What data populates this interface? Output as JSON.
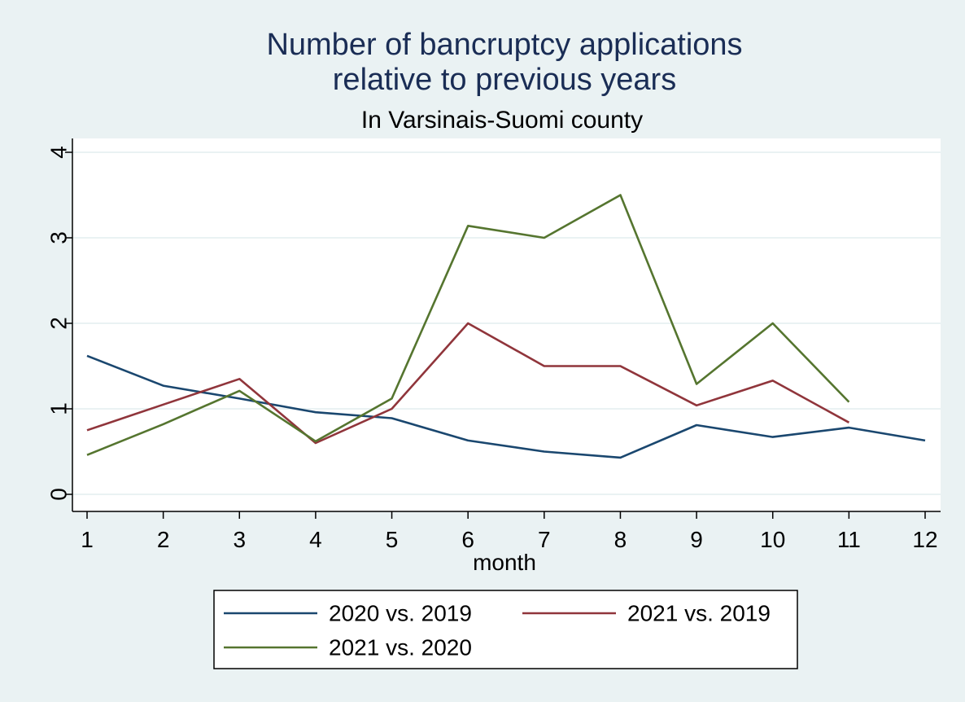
{
  "chart_data": {
    "type": "line",
    "title_lines": [
      "Number of bancruptcy applications",
      "relative to previous years"
    ],
    "subtitle": "In Varsinais-Suomi county",
    "xlabel": "month",
    "ylabel": "",
    "x": [
      1,
      2,
      3,
      4,
      5,
      6,
      7,
      8,
      9,
      10,
      11,
      12
    ],
    "x_ticks": [
      "1",
      "2",
      "3",
      "4",
      "5",
      "6",
      "7",
      "8",
      "9",
      "10",
      "11",
      "12"
    ],
    "y_ticks": [
      "0",
      "1",
      "2",
      "3",
      "4"
    ],
    "xlim": [
      1,
      12
    ],
    "ylim": [
      0,
      4
    ],
    "grid": "horizontal",
    "legend_position": "bottom",
    "series": [
      {
        "name": "2020 vs. 2019",
        "color": "#1a476f",
        "values": [
          1.62,
          1.27,
          1.12,
          0.96,
          0.89,
          0.63,
          0.5,
          0.43,
          0.81,
          0.67,
          0.78,
          0.63
        ]
      },
      {
        "name": "2021 vs. 2019",
        "color": "#90353b",
        "values": [
          0.75,
          1.05,
          1.35,
          0.6,
          1.0,
          2.0,
          1.5,
          1.5,
          1.04,
          1.33,
          0.84,
          null
        ]
      },
      {
        "name": "2021 vs. 2020",
        "color": "#55752f",
        "values": [
          0.46,
          0.82,
          1.21,
          0.62,
          1.12,
          3.14,
          3.0,
          3.5,
          1.29,
          2.0,
          1.08,
          null
        ]
      }
    ]
  }
}
